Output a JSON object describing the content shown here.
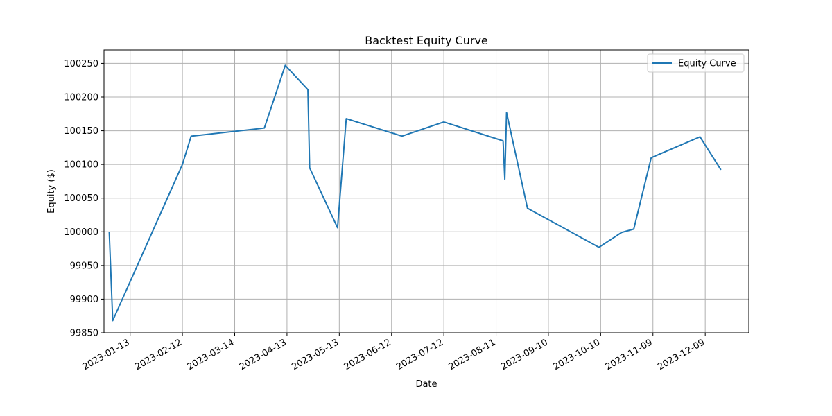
{
  "chart_data": {
    "type": "line",
    "title": "Backtest Equity Curve",
    "xlabel": "Date",
    "ylabel": "Equity ($)",
    "grid": true,
    "legend_position": "top-right",
    "xlim": [
      "2022-12-29",
      "2024-01-03"
    ],
    "ylim": [
      99850,
      100270
    ],
    "x_ticks": [
      "2023-01-13",
      "2023-02-12",
      "2023-03-14",
      "2023-04-13",
      "2023-05-13",
      "2023-06-12",
      "2023-07-12",
      "2023-08-11",
      "2023-09-10",
      "2023-10-10",
      "2023-11-09",
      "2023-12-09"
    ],
    "y_ticks": [
      99850,
      99900,
      99950,
      100000,
      100050,
      100100,
      100150,
      100200,
      100250
    ],
    "series": [
      {
        "name": "Equity Curve",
        "color": "#1f77b4",
        "x": [
          "2023-01-01",
          "2023-01-03",
          "2023-02-12",
          "2023-02-17",
          "2023-03-31",
          "2023-04-12",
          "2023-04-25",
          "2023-04-26",
          "2023-05-12",
          "2023-05-17",
          "2023-06-18",
          "2023-07-12",
          "2023-08-15",
          "2023-08-16",
          "2023-08-17",
          "2023-08-29",
          "2023-10-09",
          "2023-10-22",
          "2023-10-29",
          "2023-11-08",
          "2023-12-06",
          "2023-12-18"
        ],
        "y": [
          100000,
          99868,
          100100,
          100142,
          100154,
          100247,
          100211,
          100095,
          100006,
          100168,
          100142,
          100163,
          100135,
          100078,
          100177,
          100035,
          99977,
          99999,
          100004,
          100110,
          100141,
          100092
        ]
      }
    ]
  }
}
